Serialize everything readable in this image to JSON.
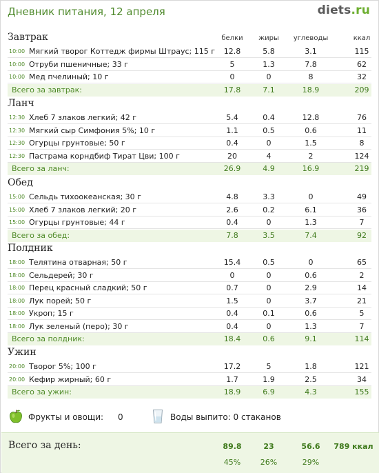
{
  "header": {
    "title": "Дневник питания, 12 апреля",
    "logo_main": "diets",
    "logo_suffix": ".ru"
  },
  "columns": {
    "protein": "белки",
    "fat": "жиры",
    "carbs": "углеводы",
    "kcal": "ккал"
  },
  "meals": [
    {
      "title": "Завтрак",
      "items": [
        {
          "time": "10:00",
          "name": "Мягкий творог Коттедж фирмы Штраус; 115 г",
          "p": "12.8",
          "f": "5.8",
          "c": "3.1",
          "k": "115"
        },
        {
          "time": "10:00",
          "name": "Отруби пшеничные; 33 г",
          "p": "5",
          "f": "1.3",
          "c": "7.8",
          "k": "62"
        },
        {
          "time": "10:00",
          "name": "Мед пчелиный; 10 г",
          "p": "0",
          "f": "0",
          "c": "8",
          "k": "32"
        }
      ],
      "total": {
        "label": "Всего за завтрак:",
        "p": "17.8",
        "f": "7.1",
        "c": "18.9",
        "k": "209"
      }
    },
    {
      "title": "Ланч",
      "items": [
        {
          "time": "12:30",
          "name": "Хлеб 7 злаков легкий; 42 г",
          "p": "5.4",
          "f": "0.4",
          "c": "12.8",
          "k": "76"
        },
        {
          "time": "12:30",
          "name": "Мягкий сыр Симфония 5%; 10 г",
          "p": "1.1",
          "f": "0.5",
          "c": "0.6",
          "k": "11"
        },
        {
          "time": "12:30",
          "name": "Огурцы грунтовые; 50 г",
          "p": "0.4",
          "f": "0",
          "c": "1.5",
          "k": "8"
        },
        {
          "time": "12:30",
          "name": "Пастрама корндбиф Тират Цви; 100 г",
          "p": "20",
          "f": "4",
          "c": "2",
          "k": "124"
        }
      ],
      "total": {
        "label": "Всего за ланч:",
        "p": "26.9",
        "f": "4.9",
        "c": "16.9",
        "k": "219"
      }
    },
    {
      "title": "Обед",
      "items": [
        {
          "time": "15:00",
          "name": "Сельдь тихоокеанская; 30 г",
          "p": "4.8",
          "f": "3.3",
          "c": "0",
          "k": "49"
        },
        {
          "time": "15:00",
          "name": "Хлеб 7 злаков легкий; 20 г",
          "p": "2.6",
          "f": "0.2",
          "c": "6.1",
          "k": "36"
        },
        {
          "time": "15:00",
          "name": "Огурцы грунтовые; 44 г",
          "p": "0.4",
          "f": "0",
          "c": "1.3",
          "k": "7"
        }
      ],
      "total": {
        "label": "Всего за обед:",
        "p": "7.8",
        "f": "3.5",
        "c": "7.4",
        "k": "92"
      }
    },
    {
      "title": "Полдник",
      "items": [
        {
          "time": "18:00",
          "name": "Телятина отварная; 50 г",
          "p": "15.4",
          "f": "0.5",
          "c": "0",
          "k": "65"
        },
        {
          "time": "18:00",
          "name": "Сельдерей; 30 г",
          "p": "0",
          "f": "0",
          "c": "0.6",
          "k": "2"
        },
        {
          "time": "18:00",
          "name": "Перец красный сладкий; 50 г",
          "p": "0.7",
          "f": "0",
          "c": "2.9",
          "k": "14"
        },
        {
          "time": "18:00",
          "name": "Лук порей; 50 г",
          "p": "1.5",
          "f": "0",
          "c": "3.7",
          "k": "21"
        },
        {
          "time": "18:00",
          "name": "Укроп; 15 г",
          "p": "0.4",
          "f": "0.1",
          "c": "0.6",
          "k": "5"
        },
        {
          "time": "18:00",
          "name": "Лук зеленый (перо); 30 г",
          "p": "0.4",
          "f": "0",
          "c": "1.3",
          "k": "7"
        }
      ],
      "total": {
        "label": "Всего за полдник:",
        "p": "18.4",
        "f": "0.6",
        "c": "9.1",
        "k": "114"
      }
    },
    {
      "title": "Ужин",
      "items": [
        {
          "time": "20:00",
          "name": "Творог 5%; 100 г",
          "p": "17.2",
          "f": "5",
          "c": "1.8",
          "k": "121"
        },
        {
          "time": "20:00",
          "name": "Кефир жирный; 60 г",
          "p": "1.7",
          "f": "1.9",
          "c": "2.5",
          "k": "34"
        }
      ],
      "total": {
        "label": "Всего за ужин:",
        "p": "18.9",
        "f": "6.9",
        "c": "4.3",
        "k": "155"
      }
    }
  ],
  "extras": {
    "fruits_label": "Фрукты и овощи:",
    "fruits_value": "0",
    "water_label": "Воды выпито: 0 стаканов",
    "apple_icon": "green-apple-icon",
    "glass_icon": "water-glass-icon"
  },
  "day_total": {
    "label": "Всего за день:",
    "p": "89.8",
    "f": "23",
    "c": "56.6",
    "kcal": "789 ккал",
    "p_pct": "45%",
    "f_pct": "26%",
    "c_pct": "29%"
  },
  "colors": {
    "accent_green": "#4f8a2c",
    "total_bg": "#eef6e4"
  }
}
